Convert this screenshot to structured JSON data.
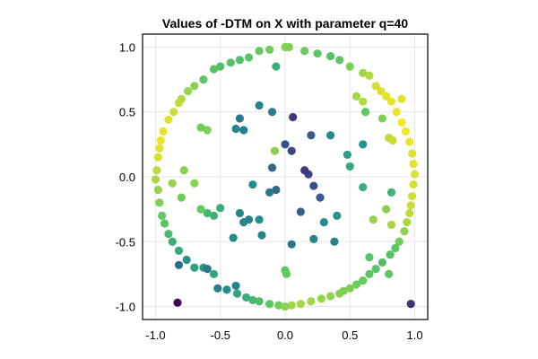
{
  "chart_data": {
    "type": "scatter",
    "title": "Values of -DTM on X with parameter q=40",
    "xlabel": "",
    "ylabel": "",
    "xlim": [
      -1.1,
      1.1
    ],
    "ylim": [
      -1.1,
      1.1
    ],
    "x_ticks": [
      -1.0,
      -0.5,
      0.0,
      0.5,
      1.0
    ],
    "y_ticks": [
      -1.0,
      -0.5,
      0.0,
      0.5,
      1.0
    ],
    "x_tick_labels": [
      "-1.0",
      "-0.5",
      "0.0",
      "0.5",
      "1.0"
    ],
    "y_tick_labels": [
      "-1.0",
      "-0.5",
      "0.0",
      "0.5",
      "1.0"
    ],
    "grid": true,
    "legend": "none",
    "colormap": "viridis",
    "colormap_stops": [
      "#440154",
      "#3b528b",
      "#21918c",
      "#5ec962",
      "#fde725"
    ],
    "points": [
      {
        "x": 0.0,
        "y": 1.0,
        "v": 0.82
      },
      {
        "x": 0.03,
        "y": 1.0,
        "v": 0.8
      },
      {
        "x": -0.12,
        "y": 0.98,
        "v": 0.78
      },
      {
        "x": -0.2,
        "y": 0.97,
        "v": 0.76
      },
      {
        "x": 0.15,
        "y": 0.97,
        "v": 0.77
      },
      {
        "x": 0.25,
        "y": 0.95,
        "v": 0.74
      },
      {
        "x": -0.28,
        "y": 0.92,
        "v": 0.73
      },
      {
        "x": -0.35,
        "y": 0.9,
        "v": 0.71
      },
      {
        "x": 0.35,
        "y": 0.93,
        "v": 0.72
      },
      {
        "x": 0.42,
        "y": 0.9,
        "v": 0.74
      },
      {
        "x": -0.42,
        "y": 0.88,
        "v": 0.72
      },
      {
        "x": -0.5,
        "y": 0.85,
        "v": 0.7
      },
      {
        "x": -0.55,
        "y": 0.83,
        "v": 0.72
      },
      {
        "x": 0.5,
        "y": 0.85,
        "v": 0.8
      },
      {
        "x": 0.6,
        "y": 0.8,
        "v": 0.85
      },
      {
        "x": -0.63,
        "y": 0.75,
        "v": 0.74
      },
      {
        "x": -0.7,
        "y": 0.7,
        "v": 0.82
      },
      {
        "x": -0.75,
        "y": 0.66,
        "v": 0.84
      },
      {
        "x": -0.8,
        "y": 0.6,
        "v": 0.88
      },
      {
        "x": -0.82,
        "y": 0.57,
        "v": 0.9
      },
      {
        "x": 0.7,
        "y": 0.7,
        "v": 0.93
      },
      {
        "x": 0.74,
        "y": 0.66,
        "v": 0.95
      },
      {
        "x": 0.78,
        "y": 0.62,
        "v": 0.96
      },
      {
        "x": 0.82,
        "y": 0.58,
        "v": 0.97
      },
      {
        "x": -0.86,
        "y": 0.5,
        "v": 0.92
      },
      {
        "x": -0.9,
        "y": 0.44,
        "v": 0.95
      },
      {
        "x": -0.94,
        "y": 0.35,
        "v": 0.96
      },
      {
        "x": -0.96,
        "y": 0.28,
        "v": 0.97
      },
      {
        "x": -0.97,
        "y": 0.22,
        "v": 0.96
      },
      {
        "x": 0.86,
        "y": 0.5,
        "v": 0.98
      },
      {
        "x": 0.9,
        "y": 0.42,
        "v": 0.99
      },
      {
        "x": 0.93,
        "y": 0.35,
        "v": 0.98
      },
      {
        "x": 0.96,
        "y": 0.27,
        "v": 0.97
      },
      {
        "x": 0.98,
        "y": 0.18,
        "v": 0.95
      },
      {
        "x": -0.98,
        "y": 0.15,
        "v": 0.94
      },
      {
        "x": -0.99,
        "y": 0.05,
        "v": 0.9
      },
      {
        "x": -1.0,
        "y": -0.02,
        "v": 0.87
      },
      {
        "x": -0.98,
        "y": -0.1,
        "v": 0.84
      },
      {
        "x": 0.99,
        "y": 0.1,
        "v": 0.96
      },
      {
        "x": 1.0,
        "y": 0.02,
        "v": 0.95
      },
      {
        "x": 0.99,
        "y": -0.06,
        "v": 0.94
      },
      {
        "x": 0.98,
        "y": -0.15,
        "v": 0.93
      },
      {
        "x": -0.97,
        "y": -0.2,
        "v": 0.8
      },
      {
        "x": -0.95,
        "y": -0.3,
        "v": 0.76
      },
      {
        "x": -0.93,
        "y": -0.36,
        "v": 0.73
      },
      {
        "x": -0.9,
        "y": -0.44,
        "v": 0.68
      },
      {
        "x": 0.97,
        "y": -0.22,
        "v": 0.92
      },
      {
        "x": 0.96,
        "y": -0.28,
        "v": 0.9
      },
      {
        "x": 0.94,
        "y": -0.35,
        "v": 0.87
      },
      {
        "x": 0.92,
        "y": -0.42,
        "v": 0.82
      },
      {
        "x": -0.87,
        "y": -0.5,
        "v": 0.62
      },
      {
        "x": -0.82,
        "y": -0.57,
        "v": 0.6
      },
      {
        "x": 0.88,
        "y": -0.5,
        "v": 0.78
      },
      {
        "x": 0.85,
        "y": -0.55,
        "v": 0.74
      },
      {
        "x": 0.81,
        "y": -0.6,
        "v": 0.72
      },
      {
        "x": -0.76,
        "y": -0.64,
        "v": 0.52
      },
      {
        "x": 0.75,
        "y": -0.66,
        "v": 0.7
      },
      {
        "x": -0.7,
        "y": -0.7,
        "v": 0.56
      },
      {
        "x": 0.7,
        "y": -0.71,
        "v": 0.72
      },
      {
        "x": 0.65,
        "y": -0.75,
        "v": 0.74
      },
      {
        "x": -0.63,
        "y": -0.7,
        "v": 0.54
      },
      {
        "x": -0.55,
        "y": -0.75,
        "v": 0.58
      },
      {
        "x": 0.6,
        "y": -0.8,
        "v": 0.76
      },
      {
        "x": 0.55,
        "y": -0.83,
        "v": 0.78
      },
      {
        "x": -0.45,
        "y": -0.87,
        "v": 0.5
      },
      {
        "x": 0.5,
        "y": -0.86,
        "v": 0.8
      },
      {
        "x": -0.37,
        "y": -0.9,
        "v": 0.58
      },
      {
        "x": 0.42,
        "y": -0.9,
        "v": 0.82
      },
      {
        "x": 0.35,
        "y": -0.92,
        "v": 0.83
      },
      {
        "x": -0.3,
        "y": -0.93,
        "v": 0.62
      },
      {
        "x": -0.2,
        "y": -0.96,
        "v": 0.7
      },
      {
        "x": 0.28,
        "y": -0.94,
        "v": 0.84
      },
      {
        "x": 0.2,
        "y": -0.96,
        "v": 0.86
      },
      {
        "x": -0.12,
        "y": -0.98,
        "v": 0.74
      },
      {
        "x": 0.12,
        "y": -0.98,
        "v": 0.86
      },
      {
        "x": -0.05,
        "y": -0.99,
        "v": 0.78
      },
      {
        "x": 0.05,
        "y": -0.99,
        "v": 0.85
      },
      {
        "x": 0.0,
        "y": -1.0,
        "v": 0.82
      },
      {
        "x": -0.25,
        "y": -0.95,
        "v": 0.66
      },
      {
        "x": 0.45,
        "y": -0.88,
        "v": 0.8
      },
      {
        "x": -0.83,
        "y": -0.97,
        "v": 0.02
      },
      {
        "x": 0.97,
        "y": -0.98,
        "v": 0.15
      },
      {
        "x": -0.82,
        "y": -0.68,
        "v": 0.35
      },
      {
        "x": -0.6,
        "y": -0.71,
        "v": 0.4
      },
      {
        "x": -0.52,
        "y": -0.86,
        "v": 0.42
      },
      {
        "x": -0.38,
        "y": -0.84,
        "v": 0.44
      },
      {
        "x": -0.35,
        "y": 0.45,
        "v": 0.4
      },
      {
        "x": -0.32,
        "y": 0.36,
        "v": 0.42
      },
      {
        "x": -0.38,
        "y": 0.37,
        "v": 0.46
      },
      {
        "x": -0.2,
        "y": 0.55,
        "v": 0.45
      },
      {
        "x": -0.1,
        "y": 0.5,
        "v": 0.43
      },
      {
        "x": 0.06,
        "y": 0.46,
        "v": 0.18
      },
      {
        "x": 0.05,
        "y": 0.2,
        "v": 0.22
      },
      {
        "x": 0.0,
        "y": 0.25,
        "v": 0.24
      },
      {
        "x": 0.2,
        "y": 0.32,
        "v": 0.3
      },
      {
        "x": 0.18,
        "y": 0.02,
        "v": 0.2
      },
      {
        "x": 0.15,
        "y": 0.05,
        "v": 0.18
      },
      {
        "x": 0.22,
        "y": -0.07,
        "v": 0.24
      },
      {
        "x": 0.27,
        "y": -0.16,
        "v": 0.28
      },
      {
        "x": 0.12,
        "y": -0.27,
        "v": 0.3
      },
      {
        "x": -0.07,
        "y": -0.1,
        "v": 0.34
      },
      {
        "x": -0.12,
        "y": -0.12,
        "v": 0.4
      },
      {
        "x": -0.1,
        "y": 0.07,
        "v": 0.34
      },
      {
        "x": -0.25,
        "y": -0.06,
        "v": 0.48
      },
      {
        "x": -0.28,
        "y": -0.33,
        "v": 0.44
      },
      {
        "x": -0.32,
        "y": -0.35,
        "v": 0.46
      },
      {
        "x": -0.4,
        "y": -0.47,
        "v": 0.48
      },
      {
        "x": -0.35,
        "y": -0.28,
        "v": 0.46
      },
      {
        "x": -0.2,
        "y": -0.33,
        "v": 0.5
      },
      {
        "x": -0.18,
        "y": -0.45,
        "v": 0.44
      },
      {
        "x": 0.05,
        "y": -0.52,
        "v": 0.4
      },
      {
        "x": 0.22,
        "y": -0.48,
        "v": 0.44
      },
      {
        "x": 0.38,
        "y": -0.5,
        "v": 0.42
      },
      {
        "x": 0.3,
        "y": -0.35,
        "v": 0.48
      },
      {
        "x": 0.35,
        "y": 0.32,
        "v": 0.48
      },
      {
        "x": 0.4,
        "y": -0.3,
        "v": 0.52
      },
      {
        "x": 0.48,
        "y": 0.17,
        "v": 0.56
      },
      {
        "x": 0.6,
        "y": 0.25,
        "v": 0.52
      },
      {
        "x": -0.55,
        "y": -0.3,
        "v": 0.64
      },
      {
        "x": -0.6,
        "y": -0.28,
        "v": 0.66
      },
      {
        "x": -0.5,
        "y": -0.24,
        "v": 0.62
      },
      {
        "x": -0.65,
        "y": -0.25,
        "v": 0.76
      },
      {
        "x": -0.8,
        "y": -0.16,
        "v": 0.78
      },
      {
        "x": -0.7,
        "y": -0.05,
        "v": 0.82
      },
      {
        "x": -0.65,
        "y": 0.38,
        "v": 0.78
      },
      {
        "x": -0.6,
        "y": 0.36,
        "v": 0.8
      },
      {
        "x": -0.78,
        "y": 0.05,
        "v": 0.82
      },
      {
        "x": -0.87,
        "y": -0.05,
        "v": 0.84
      },
      {
        "x": -0.08,
        "y": 0.2,
        "v": 0.82
      },
      {
        "x": 0.62,
        "y": 0.5,
        "v": 0.74
      },
      {
        "x": 0.55,
        "y": 0.62,
        "v": 0.86
      },
      {
        "x": 0.6,
        "y": 0.58,
        "v": 0.88
      },
      {
        "x": 0.75,
        "y": 0.45,
        "v": 0.8
      },
      {
        "x": 0.8,
        "y": 0.3,
        "v": 0.9
      },
      {
        "x": 0.83,
        "y": 0.28,
        "v": 0.92
      },
      {
        "x": 0.65,
        "y": 0.78,
        "v": 0.88
      },
      {
        "x": 0.9,
        "y": 0.6,
        "v": 0.96
      },
      {
        "x": 0.78,
        "y": -0.25,
        "v": 0.82
      },
      {
        "x": 0.68,
        "y": -0.33,
        "v": 0.84
      },
      {
        "x": 0.82,
        "y": -0.37,
        "v": 0.86
      },
      {
        "x": 0.65,
        "y": -0.62,
        "v": 0.72
      },
      {
        "x": 0.8,
        "y": -0.75,
        "v": 0.74
      },
      {
        "x": 0.6,
        "y": -0.08,
        "v": 0.62
      },
      {
        "x": 0.82,
        "y": -0.12,
        "v": 0.64
      },
      {
        "x": -0.07,
        "y": 0.85,
        "v": 0.62
      },
      {
        "x": 0.0,
        "y": -0.72,
        "v": 0.74
      },
      {
        "x": 0.01,
        "y": -0.75,
        "v": 0.76
      },
      {
        "x": 0.5,
        "y": 0.08,
        "v": 0.6
      }
    ]
  }
}
